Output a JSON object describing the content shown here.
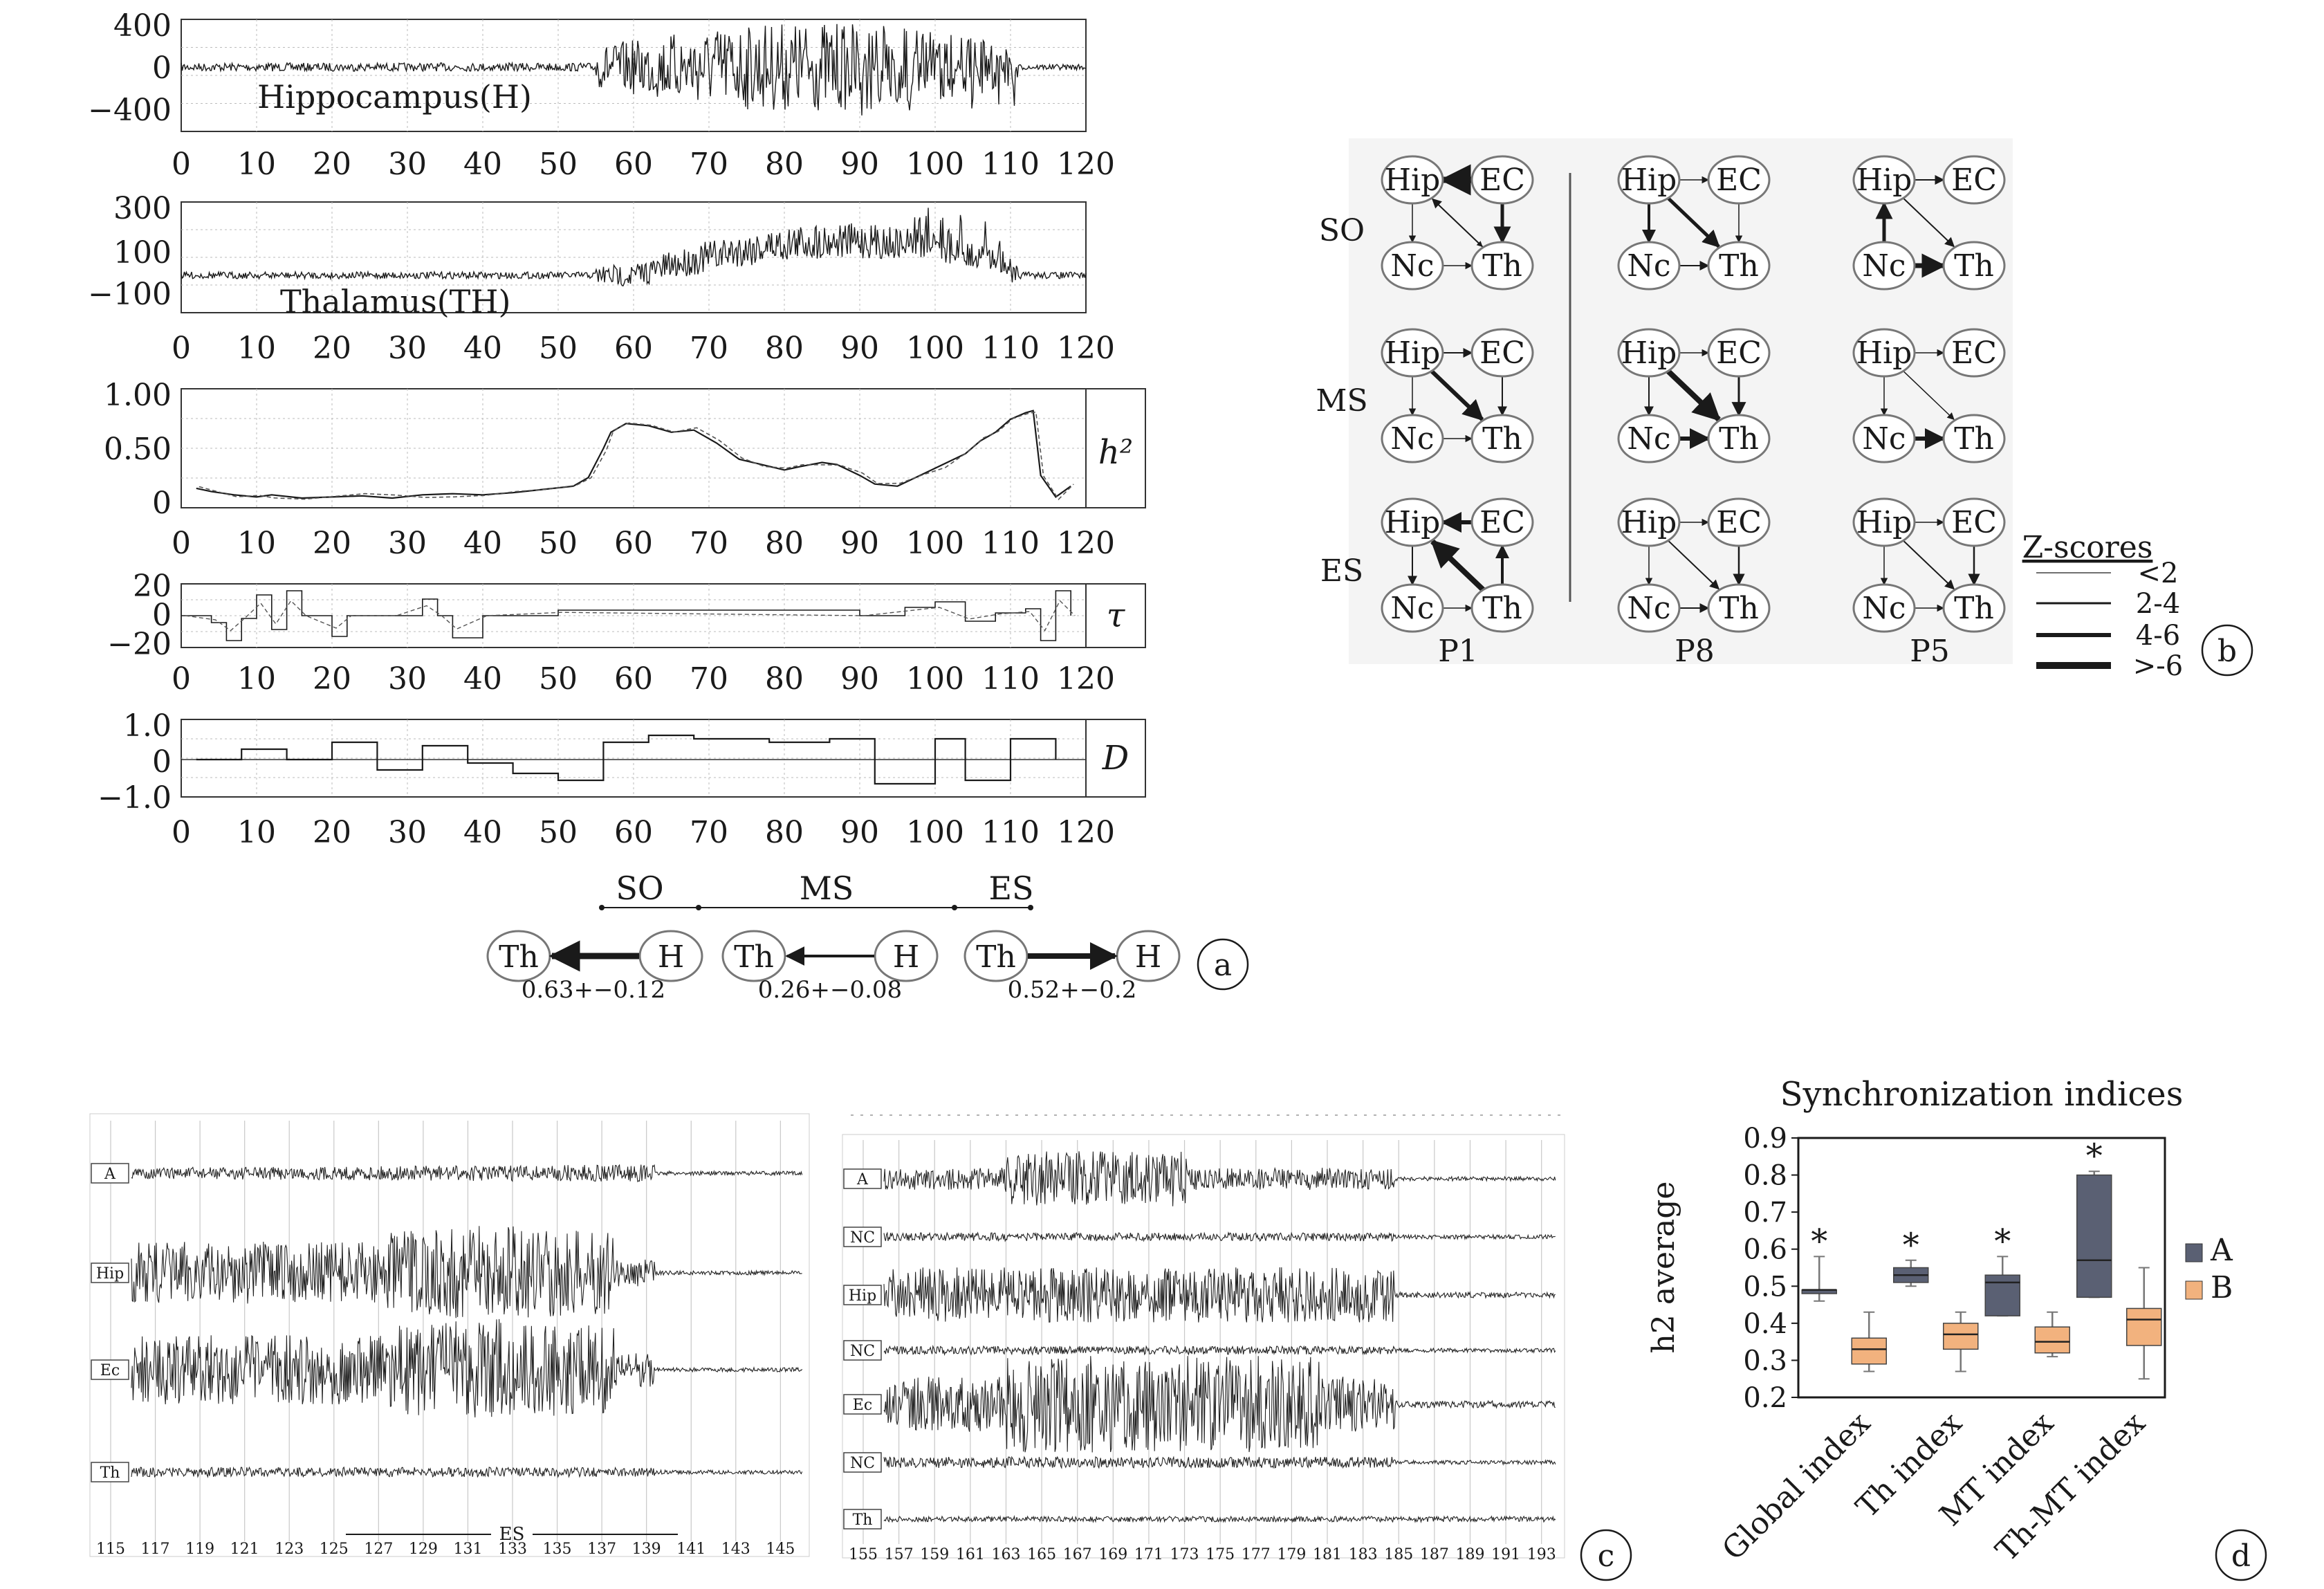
{
  "panel_letters": {
    "a": "a",
    "b": "b",
    "c": "c",
    "d": "d"
  },
  "panel_a": {
    "x_ticks": [
      "0",
      "10",
      "20",
      "30",
      "40",
      "50",
      "60",
      "70",
      "80",
      "90",
      "100",
      "110",
      "120"
    ],
    "hip": {
      "label": "Hippocampus(H)",
      "y_ticks": [
        "400",
        "0",
        "−400"
      ]
    },
    "th": {
      "label": "Thalamus(TH)",
      "y_ticks": [
        "300",
        "100",
        "−100"
      ]
    },
    "h2": {
      "label": "h²",
      "y_ticks": [
        "1.00",
        "0.50",
        "0"
      ]
    },
    "tau": {
      "label": "τ",
      "y_ticks": [
        "20",
        "0",
        "−20"
      ]
    },
    "D": {
      "label": "D",
      "y_ticks": [
        "1.0",
        "0",
        "−1.0"
      ]
    },
    "phases": [
      {
        "name": "SO",
        "src": "H",
        "dst": "Th",
        "direction": "H→Th",
        "value": "0.63+−0.12"
      },
      {
        "name": "MS",
        "src": "H",
        "dst": "Th",
        "direction": "H→Th",
        "value": "0.26+−0.08"
      },
      {
        "name": "ES",
        "src": "Th",
        "dst": "H",
        "direction": "Th→H",
        "value": "0.52+−0.2"
      }
    ],
    "node_labels": {
      "th": "Th",
      "h": "H"
    }
  },
  "panel_b": {
    "row_labels": [
      "SO",
      "MS",
      "ES"
    ],
    "patient_labels": [
      "P1",
      "P8",
      "P5"
    ],
    "node_labels": {
      "hip": "Hip",
      "ec": "EC",
      "nc": "Nc",
      "th": "Th"
    },
    "legend_title": "Z-scores",
    "legend_items": [
      "<2",
      "2-4",
      "4-6",
      ">-6"
    ]
  },
  "panel_c": {
    "left": {
      "channels": [
        "A",
        "Hip",
        "Ec",
        "Th"
      ],
      "x_ticks": [
        "115",
        "117",
        "119",
        "121",
        "123",
        "125",
        "127",
        "129",
        "131",
        "133",
        "135",
        "137",
        "139",
        "141",
        "143",
        "145"
      ],
      "marker": "ES"
    },
    "right": {
      "channels": [
        "A",
        "NC",
        "Hip",
        "NC",
        "Ec",
        "NC",
        "Th"
      ],
      "x_ticks": [
        "155",
        "157",
        "159",
        "161",
        "163",
        "165",
        "167",
        "169",
        "171",
        "173",
        "175",
        "177",
        "179",
        "181",
        "183",
        "185",
        "187",
        "189",
        "191",
        "193"
      ]
    }
  },
  "chart_data": {
    "type": "box",
    "title": "Synchronization indices",
    "ylabel": "h2 average",
    "xlabel": "",
    "ylim": [
      0.2,
      0.9
    ],
    "y_ticks": [
      "0.9",
      "0.8",
      "0.7",
      "0.6",
      "0.5",
      "0.4",
      "0.3",
      "0.2"
    ],
    "categories": [
      "Global index",
      "Th index",
      "MT index",
      "Th-MT index"
    ],
    "significance_marks": [
      "*",
      "*",
      "*",
      "*"
    ],
    "series": [
      {
        "name": "A",
        "color": "#5a6073",
        "boxes": [
          {
            "min": 0.46,
            "q1": 0.48,
            "median": 0.49,
            "q3": 0.49,
            "max": 0.58
          },
          {
            "min": 0.5,
            "q1": 0.51,
            "median": 0.53,
            "q3": 0.55,
            "max": 0.57
          },
          {
            "min": 0.42,
            "q1": 0.42,
            "median": 0.51,
            "q3": 0.53,
            "max": 0.58
          },
          {
            "min": 0.47,
            "q1": 0.47,
            "median": 0.57,
            "q3": 0.8,
            "max": 0.81
          }
        ]
      },
      {
        "name": "B",
        "color": "#f2b27e",
        "boxes": [
          {
            "min": 0.27,
            "q1": 0.29,
            "median": 0.33,
            "q3": 0.36,
            "max": 0.43
          },
          {
            "min": 0.27,
            "q1": 0.33,
            "median": 0.37,
            "q3": 0.4,
            "max": 0.43
          },
          {
            "min": 0.31,
            "q1": 0.32,
            "median": 0.35,
            "q3": 0.39,
            "max": 0.43
          },
          {
            "min": 0.25,
            "q1": 0.34,
            "median": 0.41,
            "q3": 0.44,
            "max": 0.55
          }
        ]
      }
    ]
  }
}
